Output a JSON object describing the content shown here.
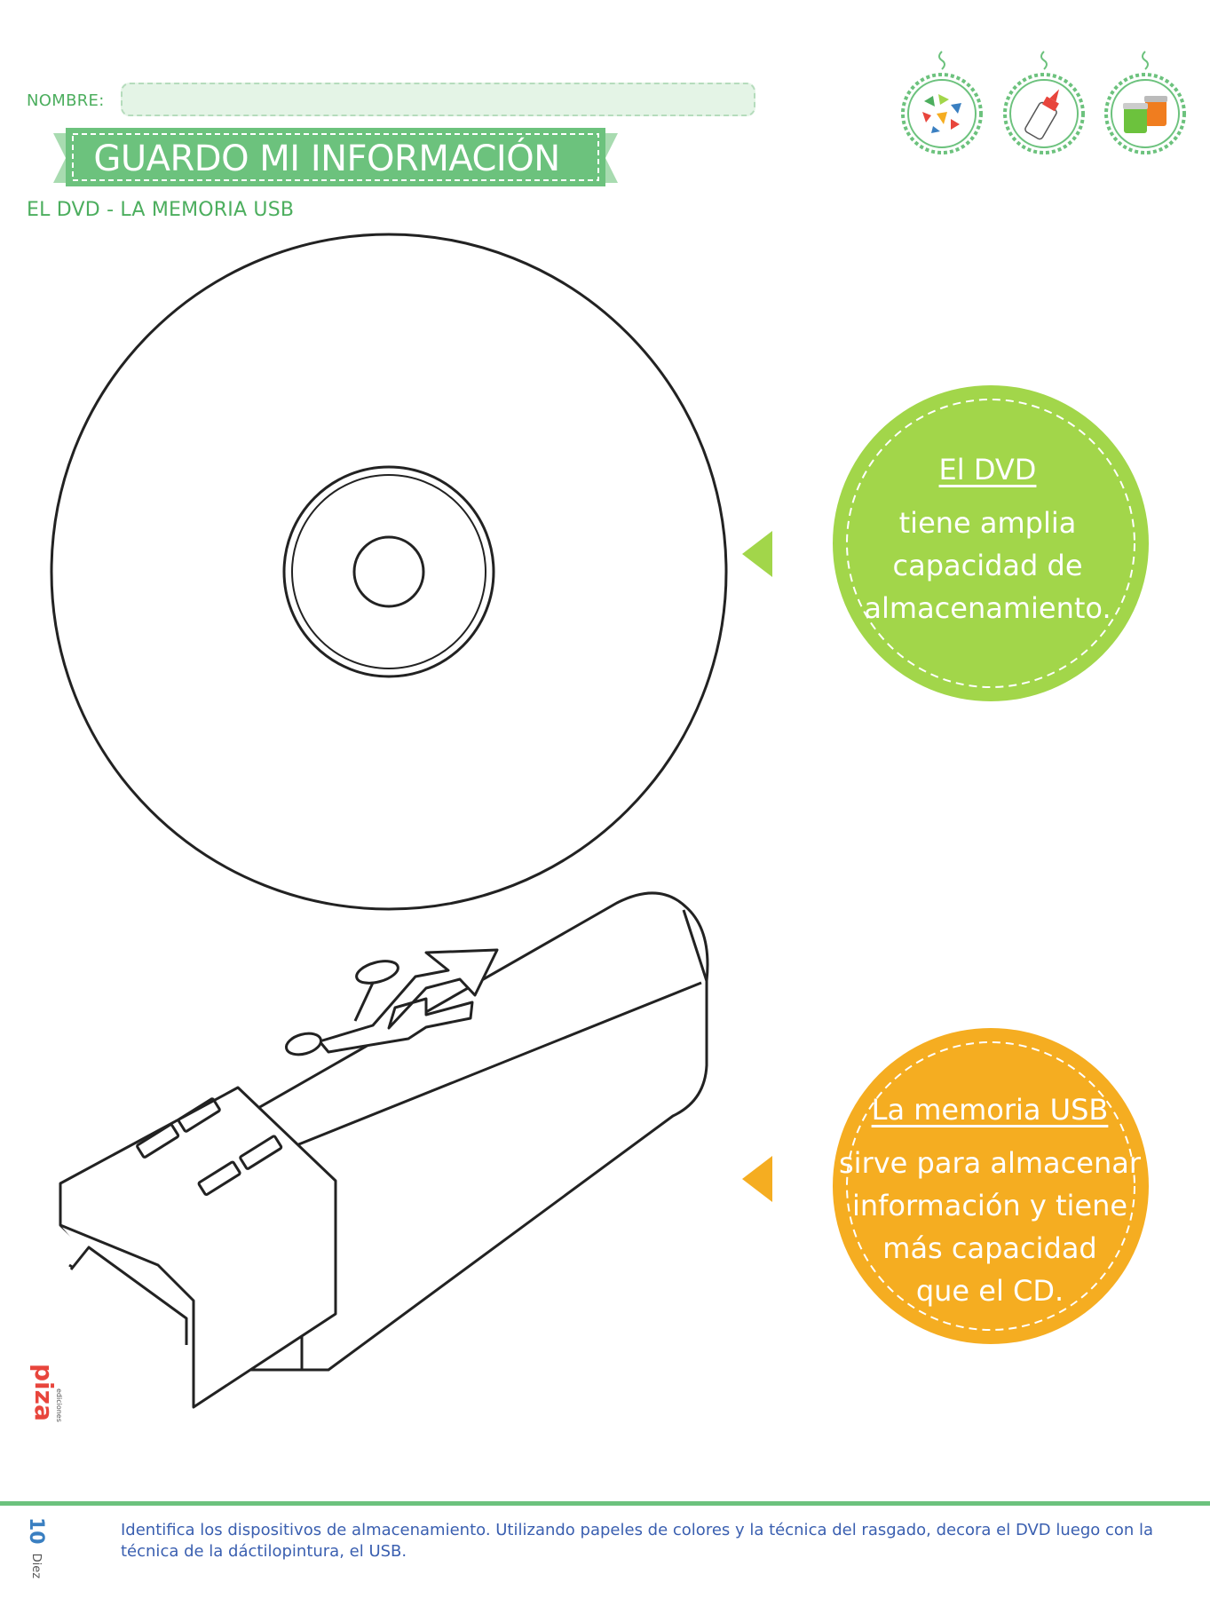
{
  "header": {
    "name_label": "NOMBRE:",
    "name_value": "",
    "title": "GUARDO MI INFORMACIÓN",
    "subtitle": "EL DVD - LA MEMORIA USB"
  },
  "badges": [
    {
      "icon": "torn-paper-pieces-icon"
    },
    {
      "icon": "glue-bottle-icon"
    },
    {
      "icon": "paint-jars-icon"
    }
  ],
  "dvd_bubble": {
    "title": "El DVD",
    "line1": "tiene amplia",
    "line2": "capacidad de",
    "line3": "almacenamiento.",
    "color": "#a2d64a"
  },
  "usb_bubble": {
    "title": "La memoria USB",
    "line1": "sirve para almacenar",
    "line2": "información y tiene",
    "line3": "más capacidad",
    "line4": "que el CD.",
    "color": "#f5ad21"
  },
  "footer": {
    "page_number": "10",
    "page_word": "Diez",
    "instructions": "Identifica los dispositivos de almacenamiento. Utilizando papeles de colores y la técnica del rasgado, decora el DVD luego con la técnica de la dáctilopintura, el USB.",
    "logo_text": "piza",
    "logo_subtext": "ediciones"
  },
  "colors": {
    "brand_green": "#4cae5e",
    "banner_green": "#6cc27d",
    "instruction_blue": "#3a5fb0"
  }
}
